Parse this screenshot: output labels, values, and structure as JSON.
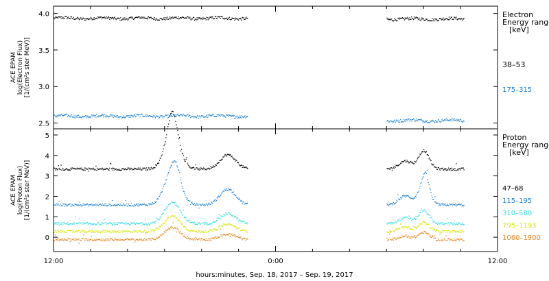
{
  "chart_data": [
    {
      "type": "scatter",
      "panel": "electron",
      "ylabel_lines": [
        "ACE EPAM",
        "log(Electron Flux)",
        "[1/(cm²s ster MeV)]"
      ],
      "legend_title": [
        "Electron",
        "Energy ranges",
        "[keV]"
      ],
      "ylim": [
        2.42,
        4.1
      ],
      "yticks": [
        2.5,
        3.0,
        3.5,
        4.0
      ],
      "ytick_labels": [
        "2.5",
        "3.0",
        "3.5",
        "4.0"
      ],
      "x_segments": [
        [
          0.0,
          10.5
        ],
        [
          18.0,
          22.2
        ]
      ],
      "series": [
        {
          "name": "38–53",
          "color": "#000000",
          "level": 3.94,
          "noise": 0.02
        },
        {
          "name": "175–315",
          "color": "#1a7fd6",
          "level": 2.6,
          "noise": 0.02
        }
      ],
      "series_segment_levels": [
        [
          3.94,
          3.93
        ],
        [
          2.6,
          2.54
        ]
      ]
    },
    {
      "type": "scatter",
      "panel": "proton",
      "ylabel_lines": [
        "ACE EPAM",
        "log(Proton Flux)",
        "[1/(cm²s ster MeV)]"
      ],
      "legend_title": [
        "Proton",
        "Energy ranges",
        "[keV]"
      ],
      "ylim": [
        -0.7,
        5.3
      ],
      "yticks": [
        0,
        1,
        2,
        3,
        4,
        5
      ],
      "ytick_labels": [
        "0",
        "1",
        "2",
        "3",
        "4",
        "5"
      ],
      "x_segments": [
        [
          0.0,
          10.5
        ],
        [
          18.0,
          22.2
        ]
      ],
      "series": [
        {
          "name": "47–68",
          "color": "#000000",
          "base": 3.35
        },
        {
          "name": "115–195",
          "color": "#1a7fd6",
          "base": 1.6
        },
        {
          "name": "310–580",
          "color": "#33e0e0",
          "base": 0.68
        },
        {
          "name": "795–1193",
          "color": "#d6e600",
          "base": 0.3
        },
        {
          "name": "1060–1900",
          "color": "#e8851a",
          "base": -0.1
        }
      ]
    }
  ],
  "x_axis": {
    "range_hours": [
      0,
      24
    ],
    "ticks": [
      0,
      12,
      24
    ],
    "tick_labels": [
      "12:00",
      "0:00",
      "12:00"
    ],
    "minor_step_hours": 2,
    "label": "hours:minutes, Sep. 18, 2017 – Sep. 19, 2017"
  }
}
